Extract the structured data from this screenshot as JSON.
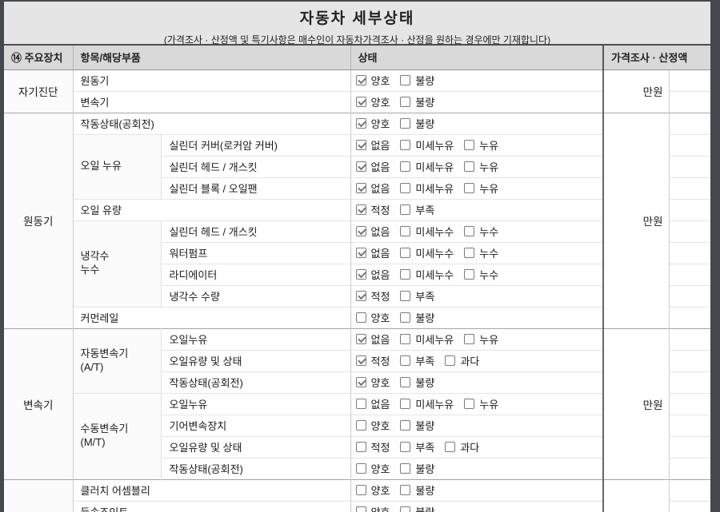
{
  "title": "자동차 세부상태",
  "subtitle": "(가격조사 · 산정액 및 특기사항은 매수인이 자동차가격조사 · 산정을 원하는 경우에만 기재합니다)",
  "colors": {
    "frame_bg": "#45484d",
    "band_bg": "#e5e5e5",
    "header_bg": "#d9d9d9",
    "check": "#757575"
  },
  "table": {
    "headers": [
      "⑭ 주요장치",
      "항목/해당부품",
      "상태",
      "가격조사 · 산정액"
    ],
    "groups": [
      {
        "device": "자기진단",
        "price": "만원",
        "rows": [
          {
            "item": "원동기",
            "wide": true,
            "options": [
              {
                "label": "양호",
                "checked": true
              },
              {
                "label": "불량",
                "checked": false
              }
            ]
          },
          {
            "item": "변속기",
            "wide": true,
            "options": [
              {
                "label": "양호",
                "checked": true
              },
              {
                "label": "불량",
                "checked": false
              }
            ]
          }
        ]
      },
      {
        "device": "원동기",
        "price": "만원",
        "rows": [
          {
            "item": "작동상태(공회전)",
            "wide": true,
            "options": [
              {
                "label": "양호",
                "checked": true
              },
              {
                "label": "불량",
                "checked": false
              }
            ]
          },
          {
            "sub": "오일 누유",
            "subspan": 3,
            "item": "실린더 커버(로커암 커버)",
            "options": [
              {
                "label": "없음",
                "checked": true
              },
              {
                "label": "미세누유",
                "checked": false
              },
              {
                "label": "누유",
                "checked": false
              }
            ]
          },
          {
            "item": "실린더 헤드 / 개스킷",
            "options": [
              {
                "label": "없음",
                "checked": true
              },
              {
                "label": "미세누유",
                "checked": false
              },
              {
                "label": "누유",
                "checked": false
              }
            ]
          },
          {
            "item": "실린더 블록 / 오일팬",
            "options": [
              {
                "label": "없음",
                "checked": true
              },
              {
                "label": "미세누유",
                "checked": false
              },
              {
                "label": "누유",
                "checked": false
              }
            ]
          },
          {
            "item": "오일 유량",
            "wide": true,
            "options": [
              {
                "label": "적정",
                "checked": true
              },
              {
                "label": "부족",
                "checked": false
              }
            ]
          },
          {
            "sub": "냉각수\n누수",
            "subspan": 4,
            "item": "실린더 헤드 / 개스킷",
            "options": [
              {
                "label": "없음",
                "checked": true
              },
              {
                "label": "미세누수",
                "checked": false
              },
              {
                "label": "누수",
                "checked": false
              }
            ]
          },
          {
            "item": "워터펌프",
            "options": [
              {
                "label": "없음",
                "checked": true
              },
              {
                "label": "미세누수",
                "checked": false
              },
              {
                "label": "누수",
                "checked": false
              }
            ]
          },
          {
            "item": "라디에이터",
            "options": [
              {
                "label": "없음",
                "checked": true
              },
              {
                "label": "미세누수",
                "checked": false
              },
              {
                "label": "누수",
                "checked": false
              }
            ]
          },
          {
            "item": "냉각수 수량",
            "options": [
              {
                "label": "적정",
                "checked": true
              },
              {
                "label": "부족",
                "checked": false
              }
            ]
          },
          {
            "item": "커먼레일",
            "wide": true,
            "options": [
              {
                "label": "양호",
                "checked": false
              },
              {
                "label": "불량",
                "checked": false
              }
            ]
          }
        ]
      },
      {
        "device": "변속기",
        "price": "만원",
        "rows": [
          {
            "sub": "자동변속기\n(A/T)",
            "subspan": 3,
            "item": "오일누유",
            "options": [
              {
                "label": "없음",
                "checked": true
              },
              {
                "label": "미세누유",
                "checked": false
              },
              {
                "label": "누유",
                "checked": false
              }
            ]
          },
          {
            "item": "오일유량 및 상태",
            "options": [
              {
                "label": "적정",
                "checked": true
              },
              {
                "label": "부족",
                "checked": false
              },
              {
                "label": "과다",
                "checked": false
              }
            ]
          },
          {
            "item": "작동상태(공회전)",
            "options": [
              {
                "label": "양호",
                "checked": true
              },
              {
                "label": "불량",
                "checked": false
              }
            ]
          },
          {
            "sub": "수동변속기\n(M/T)",
            "subspan": 4,
            "item": "오일누유",
            "options": [
              {
                "label": "없음",
                "checked": false
              },
              {
                "label": "미세누유",
                "checked": false
              },
              {
                "label": "누유",
                "checked": false
              }
            ]
          },
          {
            "item": "기어변속장치",
            "options": [
              {
                "label": "양호",
                "checked": false
              },
              {
                "label": "불량",
                "checked": false
              }
            ]
          },
          {
            "item": "오일유량 및 상태",
            "options": [
              {
                "label": "적정",
                "checked": false
              },
              {
                "label": "부족",
                "checked": false
              },
              {
                "label": "과다",
                "checked": false
              }
            ]
          },
          {
            "item": "작동상태(공회전)",
            "options": [
              {
                "label": "양호",
                "checked": false
              },
              {
                "label": "불량",
                "checked": false
              }
            ]
          }
        ]
      },
      {
        "device": "",
        "price": "",
        "rows": [
          {
            "item": "클러치 어셈블리",
            "wide": true,
            "options": [
              {
                "label": "양호",
                "checked": false
              },
              {
                "label": "불량",
                "checked": false
              }
            ]
          },
          {
            "item": "등속조인트",
            "wide": true,
            "options": [
              {
                "label": "양호",
                "checked": false
              },
              {
                "label": "불량",
                "checked": false
              }
            ]
          }
        ]
      }
    ]
  }
}
